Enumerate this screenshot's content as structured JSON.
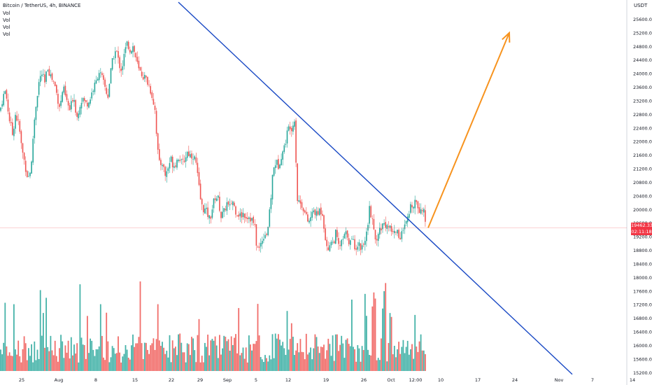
{
  "header": {
    "title": "Bitcoin / TetherUS, 4h, BINANCE",
    "indicators": [
      "Vol",
      "Vol",
      "Vol",
      "Vol"
    ],
    "currency": "USDT"
  },
  "last_price": {
    "value": "19462.33",
    "countdown": "02:11:18"
  },
  "colors": {
    "up": "#26a69a",
    "down": "#ef5350",
    "trendline": "#1848c4",
    "arrow": "#f7931e",
    "vol_up": "#26a69a",
    "vol_down": "#ef5350",
    "price_line": "#f23645"
  },
  "chart_data": {
    "type": "candlestick",
    "symbol": "Bitcoin / TetherUS",
    "interval": "4h",
    "exchange": "BINANCE",
    "ylim": [
      15000,
      26000
    ],
    "y_ticks": [
      15200,
      15600,
      16000,
      16400,
      16800,
      17200,
      17600,
      18000,
      18400,
      18800,
      19200,
      19600,
      20000,
      20400,
      20800,
      21200,
      21600,
      22000,
      22400,
      22800,
      23200,
      23600,
      24000,
      24400,
      24800,
      25200,
      25600
    ],
    "x_ticks": [
      "25",
      "Aug",
      "8",
      "15",
      "22",
      "29",
      "Sep",
      "5",
      "12",
      "19",
      "26",
      "Oct",
      "12:00",
      "10",
      "17",
      "24",
      "Nov",
      "7",
      "14"
    ],
    "price_path": [
      {
        "x": 0,
        "y": 22900
      },
      {
        "x": 4,
        "y": 23300
      },
      {
        "x": 8,
        "y": 23500
      },
      {
        "x": 13,
        "y": 22700
      },
      {
        "x": 18,
        "y": 22200
      },
      {
        "x": 22,
        "y": 22800
      },
      {
        "x": 27,
        "y": 22500
      },
      {
        "x": 31,
        "y": 21800
      },
      {
        "x": 35,
        "y": 21400
      },
      {
        "x": 40,
        "y": 20900
      },
      {
        "x": 45,
        "y": 21300
      },
      {
        "x": 48,
        "y": 22400
      },
      {
        "x": 52,
        "y": 23200
      },
      {
        "x": 56,
        "y": 23800
      },
      {
        "x": 60,
        "y": 24000
      },
      {
        "x": 64,
        "y": 23700
      },
      {
        "x": 68,
        "y": 24200
      },
      {
        "x": 73,
        "y": 23900
      },
      {
        "x": 78,
        "y": 23700
      },
      {
        "x": 82,
        "y": 23300
      },
      {
        "x": 86,
        "y": 23000
      },
      {
        "x": 90,
        "y": 23600
      },
      {
        "x": 95,
        "y": 23200
      },
      {
        "x": 100,
        "y": 22900
      },
      {
        "x": 105,
        "y": 23400
      },
      {
        "x": 110,
        "y": 22700
      },
      {
        "x": 114,
        "y": 23100
      },
      {
        "x": 118,
        "y": 23300
      },
      {
        "x": 122,
        "y": 23100
      },
      {
        "x": 128,
        "y": 23200
      },
      {
        "x": 132,
        "y": 23500
      },
      {
        "x": 137,
        "y": 23700
      },
      {
        "x": 141,
        "y": 24100
      },
      {
        "x": 145,
        "y": 23900
      },
      {
        "x": 150,
        "y": 23600
      },
      {
        "x": 154,
        "y": 23300
      },
      {
        "x": 158,
        "y": 24000
      },
      {
        "x": 162,
        "y": 24500
      },
      {
        "x": 166,
        "y": 24700
      },
      {
        "x": 170,
        "y": 24300
      },
      {
        "x": 174,
        "y": 24100
      },
      {
        "x": 178,
        "y": 24600
      },
      {
        "x": 182,
        "y": 24900
      },
      {
        "x": 186,
        "y": 24700
      },
      {
        "x": 190,
        "y": 24800
      },
      {
        "x": 194,
        "y": 24500
      },
      {
        "x": 198,
        "y": 24100
      },
      {
        "x": 202,
        "y": 24000
      },
      {
        "x": 206,
        "y": 23900
      },
      {
        "x": 210,
        "y": 23800
      },
      {
        "x": 214,
        "y": 23600
      },
      {
        "x": 218,
        "y": 23300
      },
      {
        "x": 222,
        "y": 22900
      },
      {
        "x": 225,
        "y": 21800
      },
      {
        "x": 228,
        "y": 21300
      },
      {
        "x": 232,
        "y": 21400
      },
      {
        "x": 236,
        "y": 21000
      },
      {
        "x": 240,
        "y": 21200
      },
      {
        "x": 244,
        "y": 21500
      },
      {
        "x": 248,
        "y": 21300
      },
      {
        "x": 252,
        "y": 21400
      },
      {
        "x": 256,
        "y": 21600
      },
      {
        "x": 260,
        "y": 21300
      },
      {
        "x": 264,
        "y": 21500
      },
      {
        "x": 268,
        "y": 21700
      },
      {
        "x": 272,
        "y": 21600
      },
      {
        "x": 276,
        "y": 21600
      },
      {
        "x": 280,
        "y": 21400
      },
      {
        "x": 284,
        "y": 20700
      },
      {
        "x": 288,
        "y": 20100
      },
      {
        "x": 292,
        "y": 20000
      },
      {
        "x": 296,
        "y": 19900
      },
      {
        "x": 300,
        "y": 19700
      },
      {
        "x": 304,
        "y": 20100
      },
      {
        "x": 308,
        "y": 20400
      },
      {
        "x": 312,
        "y": 20300
      },
      {
        "x": 316,
        "y": 19800
      },
      {
        "x": 320,
        "y": 19900
      },
      {
        "x": 324,
        "y": 20200
      },
      {
        "x": 328,
        "y": 20000
      },
      {
        "x": 332,
        "y": 20300
      },
      {
        "x": 336,
        "y": 20000
      },
      {
        "x": 340,
        "y": 19900
      },
      {
        "x": 344,
        "y": 19800
      },
      {
        "x": 348,
        "y": 19900
      },
      {
        "x": 352,
        "y": 19800
      },
      {
        "x": 356,
        "y": 19800
      },
      {
        "x": 360,
        "y": 19700
      },
      {
        "x": 364,
        "y": 19500
      },
      {
        "x": 367,
        "y": 18900
      },
      {
        "x": 370,
        "y": 18800
      },
      {
        "x": 374,
        "y": 19100
      },
      {
        "x": 378,
        "y": 19300
      },
      {
        "x": 382,
        "y": 19300
      },
      {
        "x": 386,
        "y": 20000
      },
      {
        "x": 390,
        "y": 21100
      },
      {
        "x": 394,
        "y": 21400
      },
      {
        "x": 398,
        "y": 21300
      },
      {
        "x": 402,
        "y": 21600
      },
      {
        "x": 406,
        "y": 21800
      },
      {
        "x": 410,
        "y": 22200
      },
      {
        "x": 414,
        "y": 22500
      },
      {
        "x": 418,
        "y": 22400
      },
      {
        "x": 421,
        "y": 22700
      },
      {
        "x": 423,
        "y": 21500
      },
      {
        "x": 425,
        "y": 20300
      },
      {
        "x": 429,
        "y": 20200
      },
      {
        "x": 433,
        "y": 20100
      },
      {
        "x": 437,
        "y": 19800
      },
      {
        "x": 441,
        "y": 19600
      },
      {
        "x": 445,
        "y": 19800
      },
      {
        "x": 449,
        "y": 20000
      },
      {
        "x": 453,
        "y": 19800
      },
      {
        "x": 457,
        "y": 20000
      },
      {
        "x": 461,
        "y": 19900
      },
      {
        "x": 465,
        "y": 19200
      },
      {
        "x": 468,
        "y": 18700
      },
      {
        "x": 472,
        "y": 19100
      },
      {
        "x": 476,
        "y": 19000
      },
      {
        "x": 480,
        "y": 19300
      },
      {
        "x": 484,
        "y": 18900
      },
      {
        "x": 488,
        "y": 19000
      },
      {
        "x": 492,
        "y": 19200
      },
      {
        "x": 496,
        "y": 19300
      },
      {
        "x": 500,
        "y": 19000
      },
      {
        "x": 504,
        "y": 19100
      },
      {
        "x": 508,
        "y": 18900
      },
      {
        "x": 512,
        "y": 19000
      },
      {
        "x": 516,
        "y": 18900
      },
      {
        "x": 520,
        "y": 19000
      },
      {
        "x": 524,
        "y": 19300
      },
      {
        "x": 528,
        "y": 20000
      },
      {
        "x": 531,
        "y": 19800
      },
      {
        "x": 535,
        "y": 19200
      },
      {
        "x": 539,
        "y": 19100
      },
      {
        "x": 543,
        "y": 19400
      },
      {
        "x": 547,
        "y": 19600
      },
      {
        "x": 551,
        "y": 19500
      },
      {
        "x": 555,
        "y": 19600
      },
      {
        "x": 559,
        "y": 19400
      },
      {
        "x": 563,
        "y": 19300
      },
      {
        "x": 567,
        "y": 19400
      },
      {
        "x": 571,
        "y": 19200
      },
      {
        "x": 575,
        "y": 19300
      },
      {
        "x": 579,
        "y": 19500
      },
      {
        "x": 583,
        "y": 19700
      },
      {
        "x": 587,
        "y": 20100
      },
      {
        "x": 591,
        "y": 20200
      },
      {
        "x": 595,
        "y": 20300
      },
      {
        "x": 599,
        "y": 20000
      },
      {
        "x": 603,
        "y": 20100
      },
      {
        "x": 607,
        "y": 19800
      },
      {
        "x": 611,
        "y": 19462
      }
    ],
    "trendline": {
      "from": {
        "x": 255,
        "y": 26100
      },
      "to": {
        "x": 818,
        "y": 15150
      }
    },
    "projection_arrow": {
      "from": {
        "x": 612,
        "y": 19460
      },
      "to": {
        "x": 728,
        "y": 25200
      }
    },
    "last_price_line": 19462.33
  }
}
